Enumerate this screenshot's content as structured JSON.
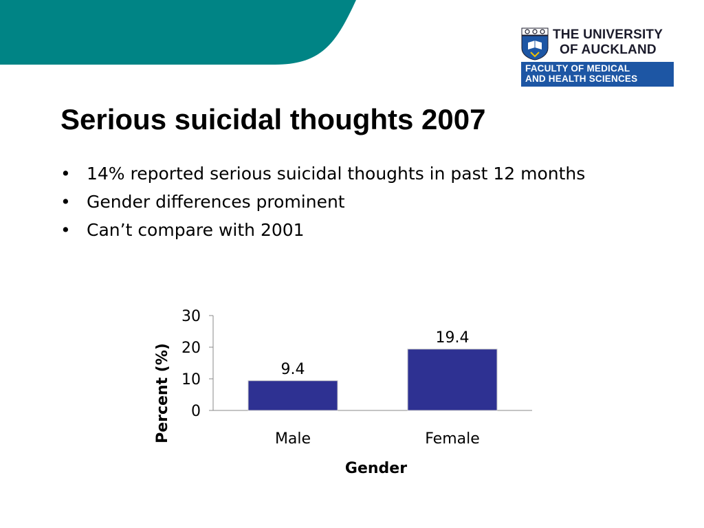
{
  "header": {
    "accent_color": "#008485"
  },
  "logo": {
    "line1": "THE UNIVERSITY",
    "line2": "OF AUCKLAND",
    "faculty_line1": "FACULTY OF MEDICAL",
    "faculty_line2": "AND HEALTH SCIENCES",
    "faculty_color": "#1d56a4",
    "crest_icon": "university-crest-icon"
  },
  "slide": {
    "title": "Serious suicidal thoughts 2007",
    "bullet_symbol": "•",
    "bullets": [
      {
        "text": "14% reported serious suicidal thoughts in past 12 months"
      },
      {
        "text": "Gender differences prominent"
      },
      {
        "text": "Can’t compare with 2001"
      }
    ]
  },
  "chart_data": {
    "type": "bar",
    "categories": [
      "Male",
      "Female"
    ],
    "values": [
      9.4,
      19.4
    ],
    "data_labels": [
      "9.4",
      "19.4"
    ],
    "title": "",
    "xlabel": "Gender",
    "ylabel": "Percent (%)",
    "ylim": [
      0,
      30
    ],
    "yticks": [
      0,
      10,
      20,
      30
    ],
    "grid": false,
    "bar_color": "#2e3192"
  }
}
